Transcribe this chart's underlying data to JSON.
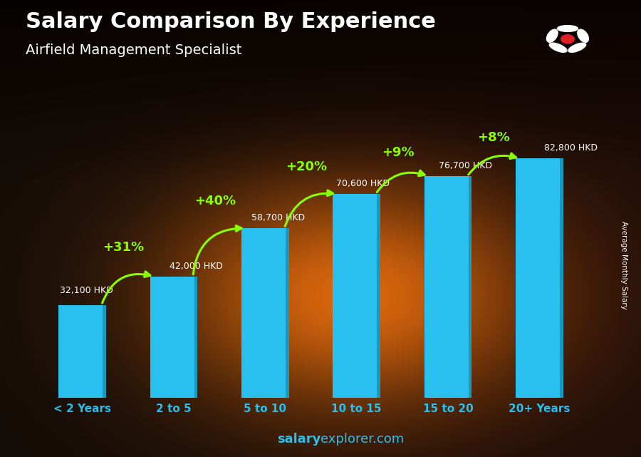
{
  "title": "Salary Comparison By Experience",
  "subtitle": "Airfield Management Specialist",
  "categories": [
    "< 2 Years",
    "2 to 5",
    "5 to 10",
    "10 to 15",
    "15 to 20",
    "20+ Years"
  ],
  "values": [
    32100,
    42000,
    58700,
    70600,
    76700,
    82800
  ],
  "labels": [
    "32,100 HKD",
    "42,000 HKD",
    "58,700 HKD",
    "70,600 HKD",
    "76,700 HKD",
    "82,800 HKD"
  ],
  "pct_labels": [
    "+31%",
    "+40%",
    "+20%",
    "+9%",
    "+8%"
  ],
  "bar_color": "#29BFEF",
  "bar_color_dark": "#1899C0",
  "pct_color": "#88FF00",
  "label_color": "#FFFFFF",
  "title_color": "#FFFFFF",
  "subtitle_color": "#FFFFFF",
  "ylabel": "Average Monthly Salary",
  "footer_bold": "salary",
  "footer_normal": "explorer.com",
  "ylim": [
    0,
    95000
  ],
  "flag_bg": "#DE2027",
  "arrow_color": "#88FF00"
}
